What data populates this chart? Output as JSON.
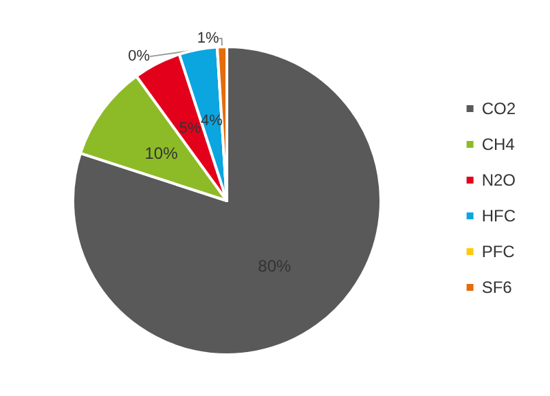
{
  "chart_data": {
    "type": "pie",
    "categories": [
      "CO2",
      "CH4",
      "N2O",
      "HFC",
      "PFC",
      "SF6"
    ],
    "values": [
      80,
      10,
      5,
      4,
      0,
      1
    ],
    "colors": [
      "#595959",
      "#8dbb27",
      "#e3001b",
      "#0ba5e0",
      "#ffc90e",
      "#e46c0a"
    ],
    "value_labels": [
      "80%",
      "10%",
      "5%",
      "4%",
      "0%",
      "1%"
    ],
    "legend": "right"
  }
}
